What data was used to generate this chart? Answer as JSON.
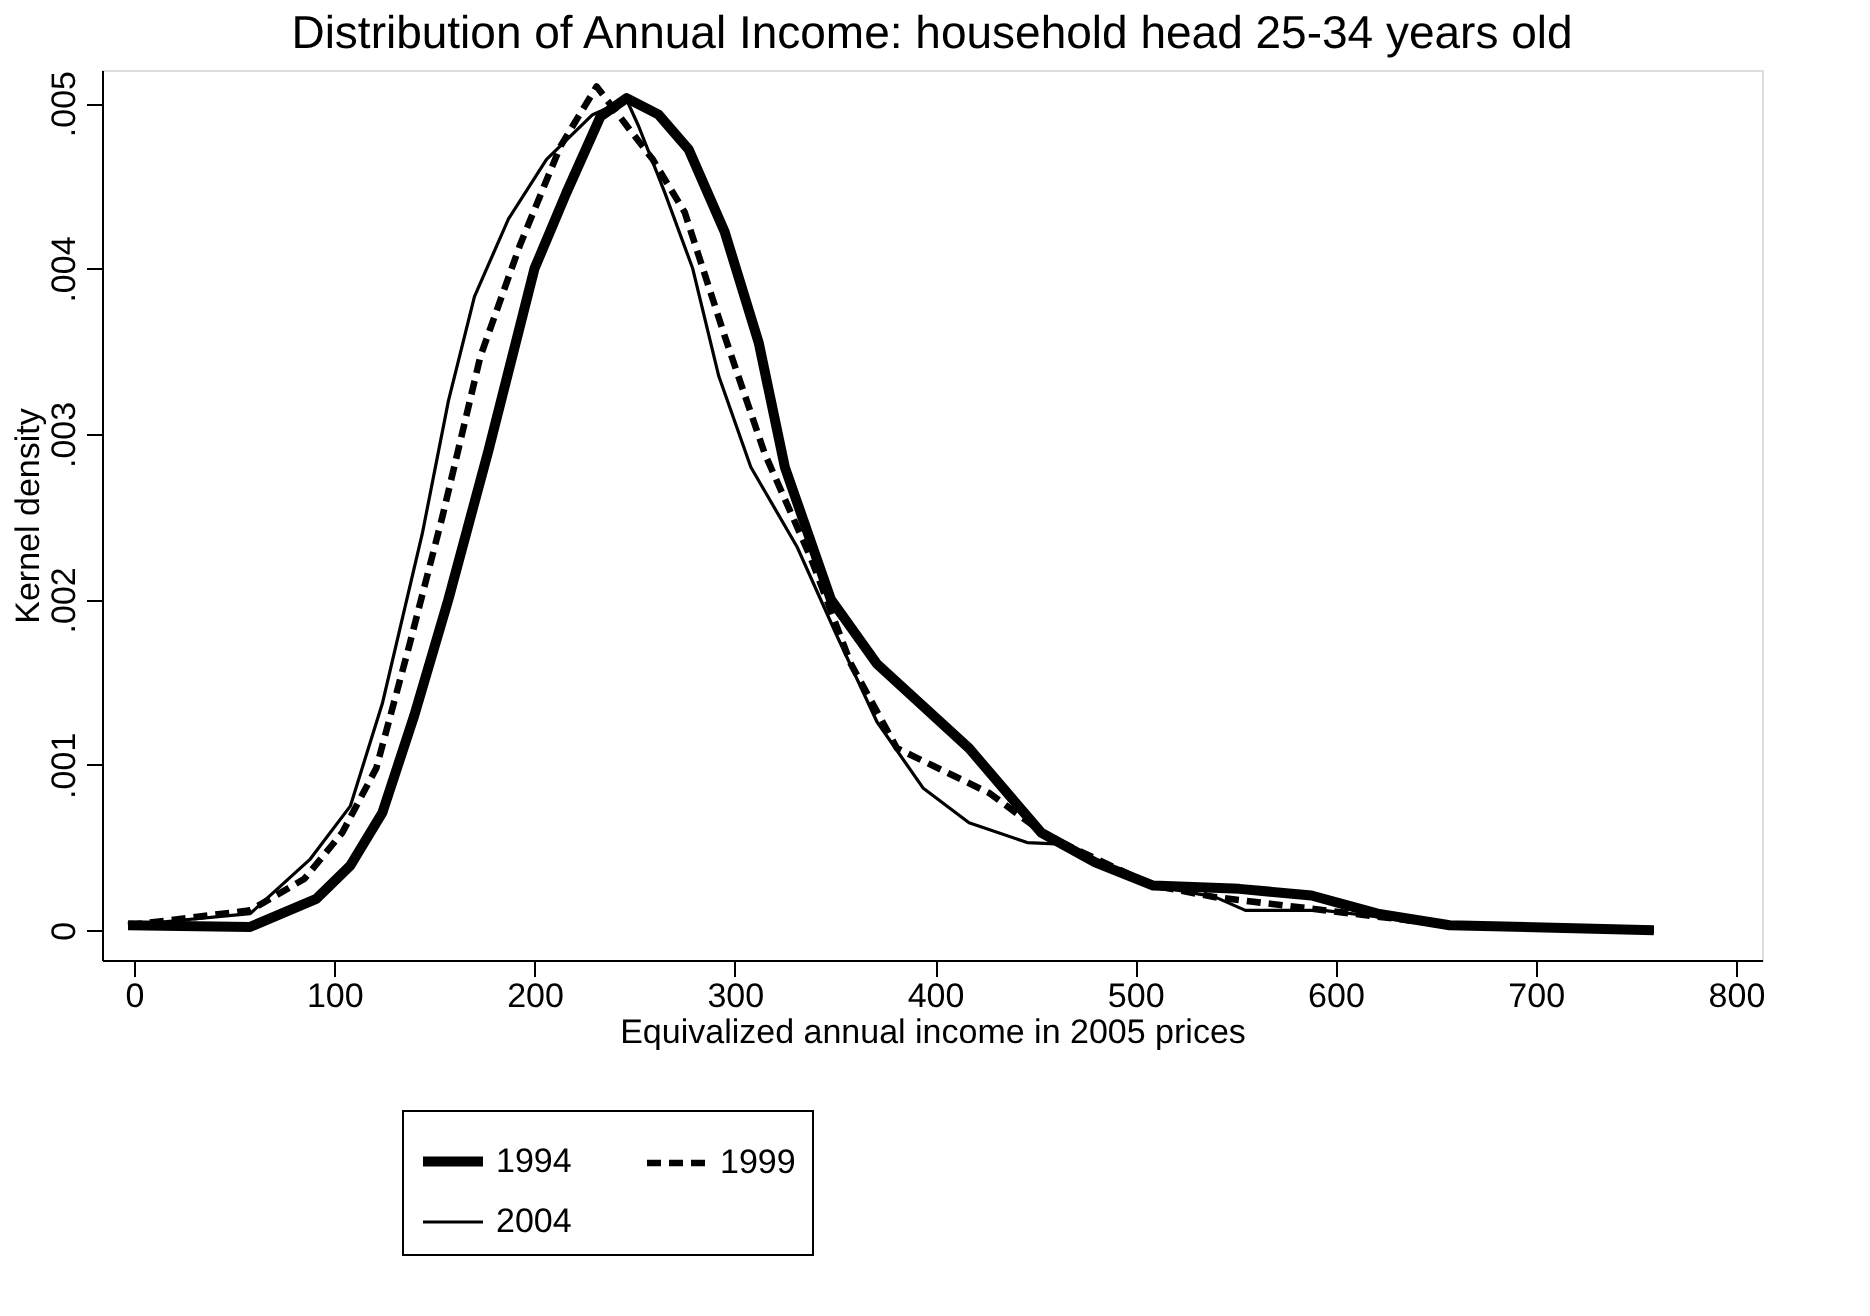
{
  "chart_data": {
    "type": "line",
    "title": "Distribution of Annual Income: household head 25-34 years old",
    "xlabel": "Equivalized annual income in 2005 prices",
    "ylabel": "Kernel density",
    "xlim": [
      -16,
      813
    ],
    "ylim": [
      -0.00018,
      0.0052
    ],
    "xticks": [
      0,
      100,
      200,
      300,
      400,
      500,
      600,
      700,
      800
    ],
    "yticks": [
      {
        "value": 0,
        "label": "0"
      },
      {
        "value": 0.001,
        "label": ".001"
      },
      {
        "value": 0.002,
        "label": ".002"
      },
      {
        "value": 0.003,
        "label": ".003"
      },
      {
        "value": 0.004,
        "label": ".004"
      },
      {
        "value": 0.005,
        "label": ".005"
      }
    ],
    "grid": false,
    "legend": "bottom",
    "marker": "none",
    "series": [
      {
        "name": "1994",
        "color": "#000000",
        "line_style": "solid",
        "x": [
          -3,
          58,
          91,
          108,
          124,
          140,
          157,
          177,
          200,
          216,
          233,
          246,
          262,
          277,
          295,
          312,
          325,
          348,
          371,
          417,
          453,
          480,
          509,
          552,
          588,
          621,
          657,
          759
        ],
        "values": [
          3e-05,
          2e-05,
          0.00019,
          0.00039,
          0.00071,
          0.0013,
          0.002,
          0.0029,
          0.004,
          0.00446,
          0.00492,
          0.00503,
          0.00493,
          0.00472,
          0.00422,
          0.00355,
          0.0028,
          0.002,
          0.00161,
          0.0011,
          0.00059,
          0.00041,
          0.00027,
          0.00025,
          0.00021,
          0.0001,
          3e-05,
          0.0
        ]
      },
      {
        "name": "1999",
        "color": "#000000",
        "line_style": "dashed",
        "x": [
          -3,
          58,
          85,
          104,
          121,
          137,
          154,
          173,
          193,
          213,
          231,
          259,
          275,
          295,
          315,
          338,
          358,
          381,
          427,
          456,
          509,
          540,
          588,
          657,
          759
        ],
        "values": [
          3e-05,
          0.00012,
          0.00031,
          0.00059,
          0.00098,
          0.0017,
          0.0025,
          0.00347,
          0.00415,
          0.00474,
          0.0051,
          0.00466,
          0.00434,
          0.00359,
          0.00288,
          0.00225,
          0.00161,
          0.0011,
          0.00083,
          0.00057,
          0.00027,
          0.0002,
          0.00013,
          3e-05,
          0.0
        ]
      },
      {
        "name": "2004",
        "color": "#000000",
        "line_style": "solid",
        "x": [
          -3,
          58,
          88,
          108,
          124,
          144,
          157,
          170,
          187,
          206,
          229,
          246,
          252,
          265,
          279,
          292,
          308,
          331,
          351,
          371,
          394,
          417,
          446,
          463,
          509,
          540,
          555,
          594,
          657,
          759
        ],
        "values": [
          3e-05,
          0.0001,
          0.00043,
          0.00075,
          0.00137,
          0.0024,
          0.0032,
          0.00383,
          0.0043,
          0.00466,
          0.00493,
          0.00502,
          0.00486,
          0.00446,
          0.004,
          0.00335,
          0.0028,
          0.00232,
          0.00178,
          0.00126,
          0.00086,
          0.00065,
          0.00053,
          0.00052,
          0.00027,
          0.0002,
          0.00012,
          0.00012,
          3e-05,
          0.0
        ]
      }
    ]
  }
}
